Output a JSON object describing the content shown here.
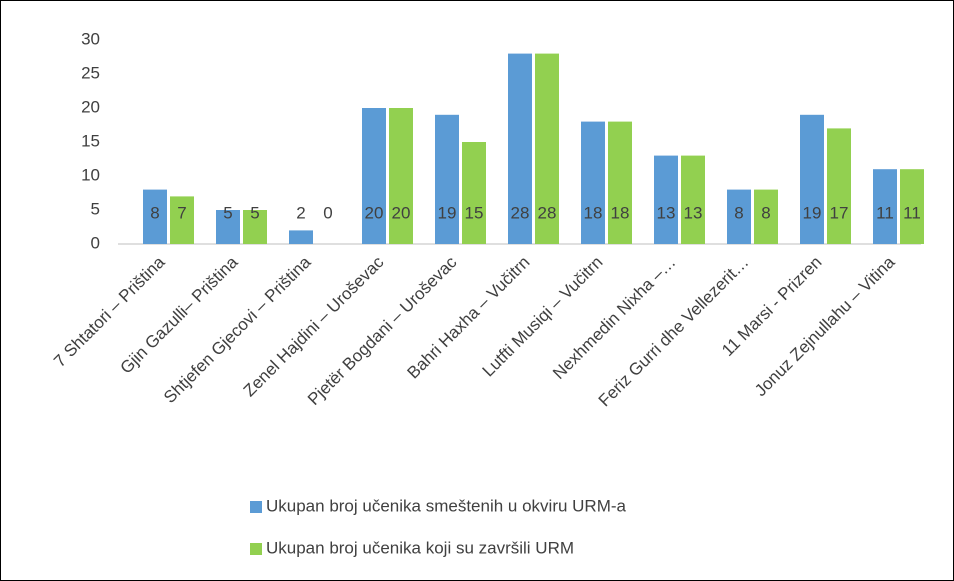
{
  "chart_data": {
    "type": "bar",
    "categories": [
      "7 Shtatori – Priština",
      "Gjin Gazulli– Priština",
      "Shtjefen Gjecovi – Priština",
      "Zenel Hajdini – Uroševac",
      "Pjetër Bogdani – Uroševac",
      "Bahri Haxha – Vučitrn",
      "Lutfti Musiqi – Vučitrn",
      "Nexhmedin Nixha –…",
      "Feriz Gurri dhe Vellezerit…",
      "11 Marsi - Prizren",
      "Jonuz Zejnullahu – Vitina"
    ],
    "series": [
      {
        "name": "Ukupan broj učenika smeštenih u okviru URM-a",
        "color": "#5b9bd5",
        "values": [
          8,
          5,
          2,
          20,
          19,
          28,
          18,
          13,
          8,
          19,
          11
        ]
      },
      {
        "name": "Ukupan broj učenika koji su završili URM",
        "color": "#92d050",
        "values": [
          7,
          5,
          0,
          20,
          15,
          28,
          18,
          13,
          8,
          17,
          11
        ]
      }
    ],
    "ylim": [
      0,
      30
    ],
    "yticks": [
      0,
      5,
      10,
      15,
      20,
      25,
      30
    ],
    "grid": false,
    "data_labels": true,
    "legend": "bottom"
  }
}
